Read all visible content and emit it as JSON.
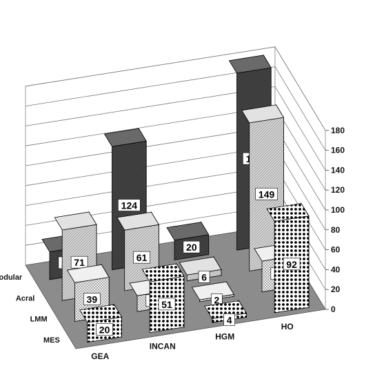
{
  "chart_data": {
    "type": "bar",
    "title": "",
    "xlabel": "",
    "ylabel": "",
    "zlim": [
      0,
      180
    ],
    "z_ticks": [
      "0",
      "20",
      "40",
      "60",
      "80",
      "100",
      "120",
      "140",
      "160",
      "180"
    ],
    "categories": [
      "GEA",
      "INCAN",
      "HGM",
      "HO"
    ],
    "series": [
      {
        "name": "Nodular",
        "values": [
          28,
          124,
          20,
          178
        ],
        "color": "#4a4a4a"
      },
      {
        "name": "Acral",
        "values": [
          71,
          61,
          6,
          149
        ],
        "color": "#d0d0d0"
      },
      {
        "name": "LMM",
        "values": [
          39,
          16,
          2,
          31
        ],
        "color": "#e6e6e6"
      },
      {
        "name": "MES",
        "values": [
          20,
          51,
          4,
          92
        ],
        "color": "#ffffff"
      }
    ],
    "grid": true,
    "floor_color": "#8c8c8c"
  }
}
